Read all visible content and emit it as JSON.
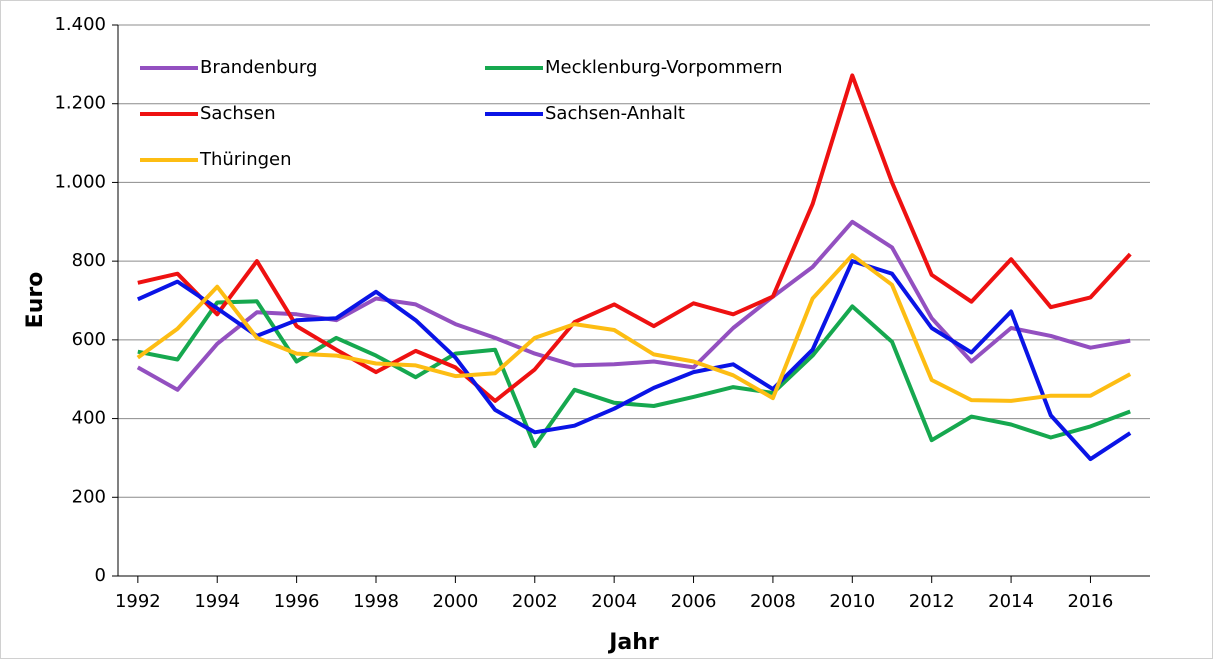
{
  "chart_data": {
    "type": "line",
    "xlabel": "Jahr",
    "ylabel": "Euro",
    "x": [
      1992,
      1993,
      1994,
      1995,
      1996,
      1997,
      1998,
      1999,
      2000,
      2001,
      2002,
      2003,
      2004,
      2005,
      2006,
      2007,
      2008,
      2009,
      2010,
      2011,
      2012,
      2013,
      2014,
      2015,
      2016,
      2017
    ],
    "series": [
      {
        "name": "Brandenburg",
        "color": "#9350c0",
        "values": [
          530,
          473,
          590,
          670,
          665,
          650,
          705,
          690,
          640,
          605,
          565,
          535,
          538,
          545,
          530,
          630,
          710,
          785,
          900,
          835,
          655,
          545,
          630,
          610,
          580,
          598
        ]
      },
      {
        "name": "Mecklenburg-Vorpommern",
        "color": "#16a84f",
        "values": [
          570,
          550,
          695,
          698,
          545,
          605,
          560,
          505,
          565,
          575,
          330,
          473,
          440,
          432,
          455,
          480,
          465,
          560,
          685,
          595,
          345,
          405,
          385,
          352,
          380,
          418
        ]
      },
      {
        "name": "Sachsen",
        "color": "#ee1111",
        "values": [
          745,
          768,
          665,
          800,
          635,
          575,
          518,
          572,
          530,
          445,
          525,
          645,
          690,
          635,
          693,
          665,
          710,
          945,
          1272,
          1000,
          765,
          697,
          805,
          683,
          708,
          818
        ]
      },
      {
        "name": "Sachsen-Anhalt",
        "color": "#0a14e6",
        "values": [
          703,
          748,
          680,
          610,
          650,
          655,
          722,
          650,
          555,
          422,
          365,
          382,
          425,
          478,
          518,
          538,
          475,
          575,
          800,
          768,
          630,
          568,
          672,
          408,
          297,
          363
        ]
      },
      {
        "name": "Thüringen",
        "color": "#fdbd13",
        "values": [
          555,
          628,
          735,
          605,
          565,
          560,
          540,
          535,
          508,
          515,
          605,
          640,
          625,
          563,
          545,
          510,
          452,
          705,
          815,
          740,
          498,
          447,
          445,
          458,
          458,
          513
        ]
      }
    ],
    "xlim": [
      1991.5,
      2017.5
    ],
    "xticks": [
      1992,
      1994,
      1996,
      1998,
      2000,
      2002,
      2004,
      2006,
      2008,
      2010,
      2012,
      2014,
      2016
    ],
    "ylim": [
      0,
      1400
    ],
    "yticks": [
      0,
      200,
      400,
      600,
      800,
      {
        "value": 1000,
        "label": "1.000"
      },
      {
        "value": 1200,
        "label": "1.200"
      },
      {
        "value": 1400,
        "label": "1.400"
      }
    ],
    "grid": true,
    "legend": "top-left"
  }
}
